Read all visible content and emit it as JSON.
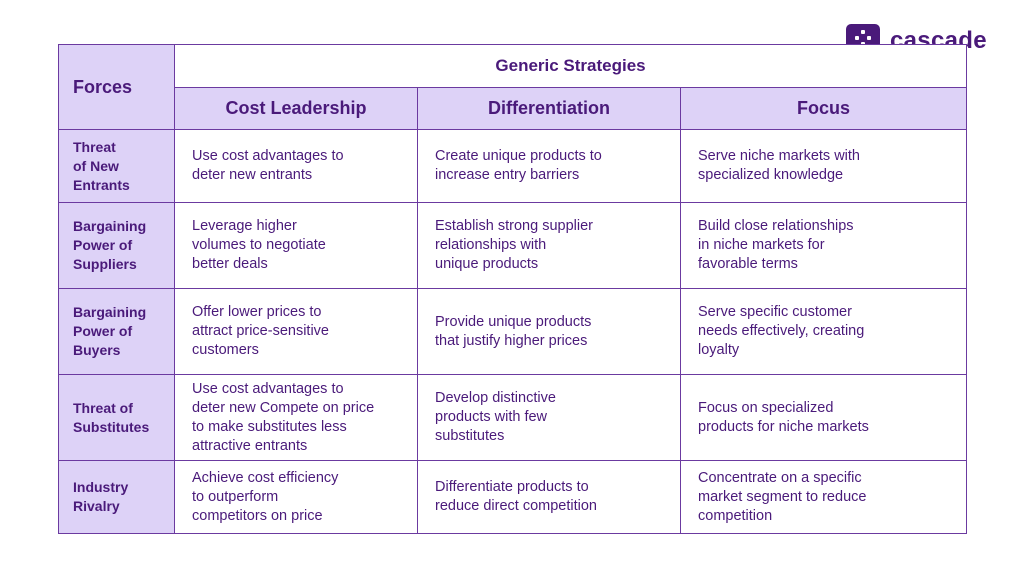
{
  "brand": {
    "name": "cascade",
    "mark_icon": "cascade-logo-icon",
    "color": "#4a1a7a"
  },
  "table": {
    "forces_header": "Forces",
    "group_header": "Generic Strategies",
    "strategies": [
      "Cost Leadership",
      "Differentiation",
      "Focus"
    ],
    "rows": [
      {
        "force": "Threat\nof New\nEntrants",
        "cells": [
          "Use cost advantages to\ndeter new entrants",
          "Create unique products to\nincrease entry barriers",
          "Serve niche markets with\nspecialized knowledge"
        ]
      },
      {
        "force": "Bargaining\nPower of\nSuppliers",
        "cells": [
          "Leverage higher\nvolumes to negotiate\nbetter deals",
          "Establish strong supplier\nrelationships with\nunique products",
          "Build close relationships\nin niche markets for\nfavorable terms"
        ]
      },
      {
        "force": "Bargaining\nPower of\nBuyers",
        "cells": [
          "Offer lower prices to\nattract price-sensitive\ncustomers",
          "Provide unique products\nthat justify higher prices",
          "Serve specific customer\nneeds effectively, creating\nloyalty"
        ]
      },
      {
        "force": "Threat of\nSubstitutes",
        "cells": [
          "Use cost advantages to\ndeter new Compete on price\nto make substitutes less\nattractive entrants",
          "Develop distinctive\nproducts with few\nsubstitutes",
          "Focus on specialized\nproducts for niche markets"
        ]
      },
      {
        "force": "Industry\nRivalry",
        "cells": [
          "Achieve cost efficiency\nto outperform\ncompetitors on price",
          "Differentiate products to\nreduce direct competition",
          "Concentrate on a specific\nmarket segment to reduce\ncompetition"
        ]
      }
    ]
  }
}
